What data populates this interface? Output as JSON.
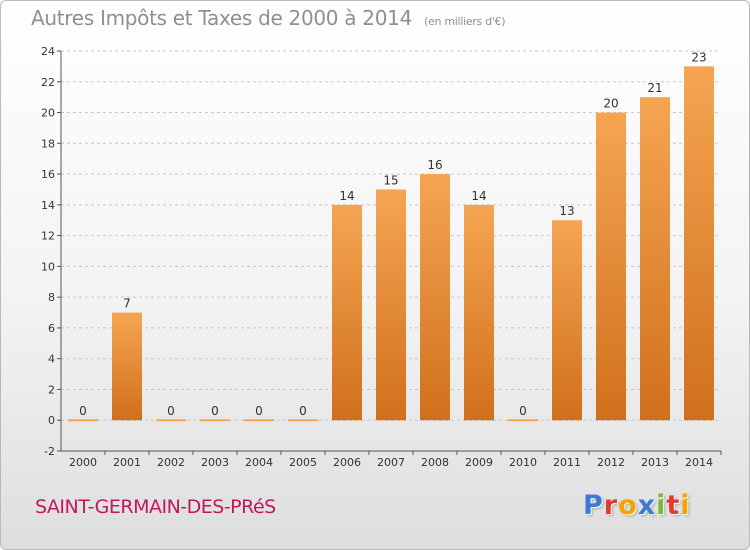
{
  "title": "Autres Impôts et Taxes de 2000 à 2014",
  "title_unit": "(en milliers d'€)",
  "commune": "SAINT-GERMAIN-DES-PRéS",
  "logo_letters": [
    "P",
    "r",
    "o",
    "x",
    "i",
    "t",
    "i"
  ],
  "logo_colors": [
    "#3a7bd5",
    "#e23b2e",
    "#f5a300",
    "#3a7bd5",
    "#7bb92f",
    "#e23b2e",
    "#f5a300"
  ],
  "colors": {
    "bar_light": "#f5a552",
    "bar_dark": "#d0701c",
    "axis": "#555555",
    "grid": "#c8c8c8",
    "text": "#333333",
    "commune": "#c2185b"
  },
  "chart_data": {
    "type": "bar",
    "categories": [
      "2000",
      "2001",
      "2002",
      "2003",
      "2004",
      "2005",
      "2006",
      "2007",
      "2008",
      "2009",
      "2010",
      "2011",
      "2012",
      "2013",
      "2014"
    ],
    "values": [
      0,
      7,
      0,
      0,
      0,
      0,
      14,
      15,
      16,
      14,
      0,
      13,
      20,
      21,
      23
    ],
    "data_labels": [
      "0",
      "7",
      "0",
      "0",
      "0",
      "0",
      "14",
      "15",
      "16",
      "14",
      "0",
      "13",
      "20",
      "21",
      "23"
    ],
    "ylim": [
      -2,
      24
    ],
    "yticks": [
      -2,
      0,
      2,
      4,
      6,
      8,
      10,
      12,
      14,
      16,
      18,
      20,
      22,
      24
    ],
    "grid": "horizontal dashed",
    "legend": "none"
  }
}
